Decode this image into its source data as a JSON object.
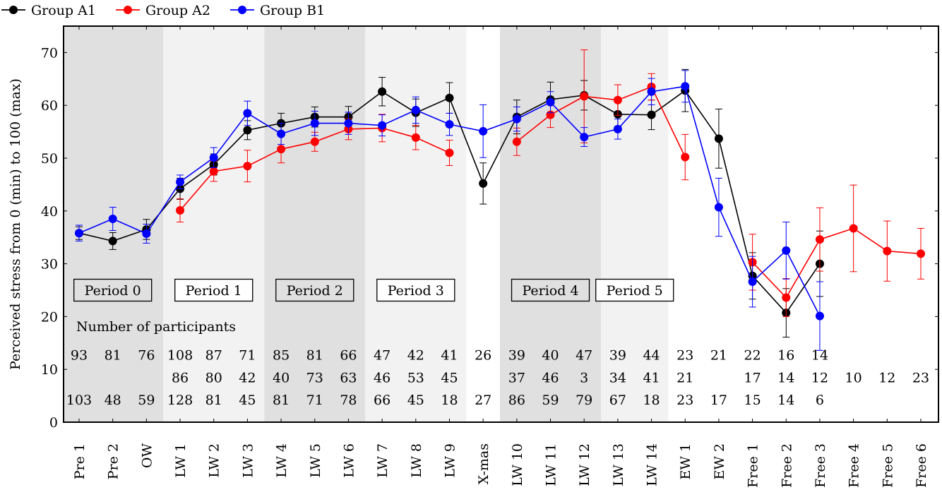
{
  "chart_data": {
    "type": "line",
    "ylabel": "Perceived stress from 0 (min) to 100 (max)",
    "xlabel": "",
    "ylim": [
      0,
      75
    ],
    "yticks": [
      0,
      10,
      20,
      30,
      40,
      50,
      60,
      70
    ],
    "grid": false,
    "legend_position": "top-left",
    "categories": [
      "Pre 1",
      "Pre 2",
      "OW",
      "LW 1",
      "LW 2",
      "LW 3",
      "LW 4",
      "LW 5",
      "LW 6",
      "LW 7",
      "LW 8",
      "LW 9",
      "X-mas",
      "LW 10",
      "LW 11",
      "LW 12",
      "LW 13",
      "LW 14",
      "EW 1",
      "EW 2",
      "Free 1",
      "Free 2",
      "Free 3",
      "Free 4",
      "Free 5",
      "Free 6"
    ],
    "series": [
      {
        "name": "Group A1",
        "color": "#000000",
        "values": [
          35.8,
          34.3,
          36.5,
          44.2,
          48.8,
          55.3,
          56.6,
          57.8,
          57.8,
          62.6,
          58.6,
          61.4,
          45.2,
          57.8,
          61.1,
          61.9,
          58.3,
          58.2,
          62.8,
          53.7,
          27.7,
          20.7,
          30.0,
          null,
          null,
          null
        ],
        "errors": [
          1.2,
          1.6,
          1.9,
          2.0,
          2.0,
          1.8,
          1.9,
          1.9,
          2.0,
          2.7,
          2.6,
          2.9,
          3.9,
          3.2,
          3.3,
          2.8,
          2.3,
          2.8,
          4.0,
          5.6,
          4.4,
          4.6,
          6.2,
          null,
          null,
          null
        ]
      },
      {
        "name": "Group A2",
        "color": "#ff0000",
        "values": [
          null,
          null,
          null,
          40.1,
          47.5,
          48.5,
          51.7,
          53.1,
          55.5,
          55.7,
          53.9,
          51.0,
          null,
          53.1,
          58.2,
          61.7,
          61.0,
          63.5,
          50.2,
          null,
          30.3,
          23.6,
          34.6,
          36.7,
          32.4,
          31.9
        ],
        "errors": [
          null,
          null,
          null,
          2.2,
          1.9,
          3.0,
          2.6,
          1.8,
          2.0,
          2.6,
          2.3,
          2.4,
          null,
          2.6,
          2.4,
          8.8,
          2.9,
          2.5,
          4.3,
          null,
          5.3,
          3.6,
          6.0,
          8.2,
          5.7,
          4.8
        ]
      },
      {
        "name": "Group B1",
        "color": "#0000ff",
        "values": [
          35.8,
          38.5,
          35.7,
          45.5,
          50.1,
          58.5,
          54.6,
          56.6,
          56.6,
          56.2,
          59.1,
          56.4,
          55.1,
          57.4,
          60.6,
          54.0,
          55.5,
          62.6,
          63.6,
          40.7,
          26.6,
          32.5,
          20.1,
          null,
          null,
          null
        ],
        "errors": [
          1.5,
          2.2,
          1.8,
          1.3,
          1.9,
          2.3,
          2.0,
          2.3,
          2.1,
          2.0,
          2.5,
          2.1,
          5.0,
          2.3,
          2.0,
          1.8,
          1.9,
          2.5,
          3.0,
          5.5,
          4.8,
          5.4,
          6.5,
          null,
          null,
          null
        ]
      }
    ],
    "shaded_bands": [
      {
        "start": 0,
        "end": 2,
        "shade": "dark"
      },
      {
        "start": 3,
        "end": 5,
        "shade": "light"
      },
      {
        "start": 6,
        "end": 8,
        "shade": "dark"
      },
      {
        "start": 9,
        "end": 11,
        "shade": "light"
      },
      {
        "start": 13,
        "end": 15,
        "shade": "dark"
      },
      {
        "start": 16,
        "end": 17,
        "shade": "light"
      }
    ],
    "period_labels": [
      {
        "text": "Period 0",
        "from": 0,
        "to": 2,
        "boxed_fill": "dark"
      },
      {
        "text": "Period 1",
        "from": 3,
        "to": 5,
        "boxed_fill": "white"
      },
      {
        "text": "Period 2",
        "from": 6,
        "to": 8,
        "boxed_fill": "dark"
      },
      {
        "text": "Period 3",
        "from": 9,
        "to": 11,
        "boxed_fill": "white"
      },
      {
        "text": "Period 4",
        "from": 13,
        "to": 15,
        "boxed_fill": "dark"
      },
      {
        "text": "Period 5",
        "from": 16,
        "to": 17,
        "boxed_fill": "white"
      }
    ],
    "period_label_y": 25,
    "participants_title": "Number of participants",
    "participants_title_y": 18.2,
    "participants_rows": [
      {
        "y": 12.8,
        "counts": [
          "93",
          "81",
          "76",
          "108",
          "87",
          "71",
          "85",
          "81",
          "66",
          "47",
          "42",
          "41",
          "26",
          "39",
          "40",
          "47",
          "39",
          "44",
          "23",
          "21",
          "22",
          "16",
          "14",
          "",
          "",
          ""
        ]
      },
      {
        "y": 8.5,
        "counts": [
          "",
          "",
          "",
          "86",
          "80",
          "42",
          "40",
          "73",
          "63",
          "46",
          "53",
          "45",
          "",
          "37",
          "46",
          "3",
          "34",
          "41",
          "21",
          "",
          "17",
          "14",
          "12",
          "10",
          "12",
          "23"
        ]
      },
      {
        "y": 4.3,
        "counts": [
          "103",
          "48",
          "59",
          "128",
          "81",
          "45",
          "81",
          "71",
          "78",
          "66",
          "45",
          "18",
          "27",
          "86",
          "59",
          "79",
          "67",
          "18",
          "23",
          "17",
          "15",
          "14",
          "6",
          "",
          "",
          ""
        ]
      }
    ]
  }
}
